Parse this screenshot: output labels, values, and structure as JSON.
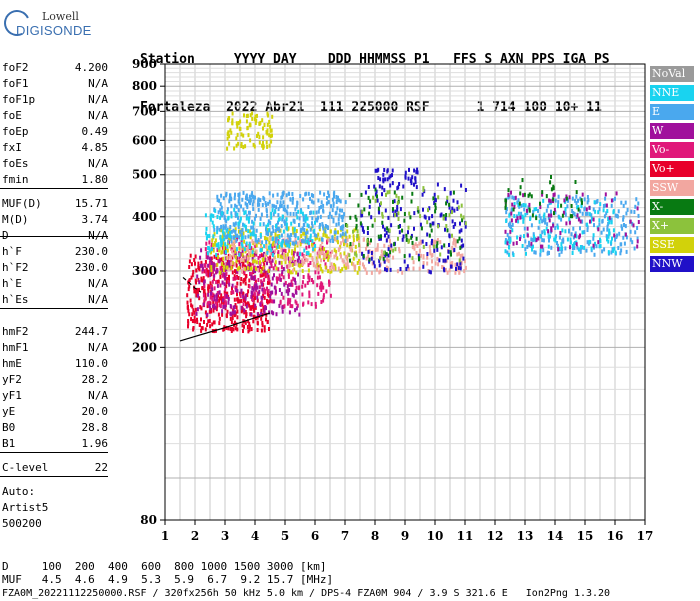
{
  "logo": {
    "line1": "Lowell",
    "line2": "DIGISONDE"
  },
  "header": {
    "line1": "Station     YYYY DAY    DDD HHMMSS P1   FFS S AXN PPS IGA PS",
    "line2": "Fortaleza  2022 Abr21  111 225000 RSF      1 714 100 10+ 11"
  },
  "params": {
    "group1": [
      {
        "name": "foF2",
        "value": "4.200"
      },
      {
        "name": "foF1",
        "value": "N/A"
      },
      {
        "name": "foF1p",
        "value": "N/A"
      },
      {
        "name": "foE",
        "value": "N/A"
      },
      {
        "name": "foEp",
        "value": "0.49"
      },
      {
        "name": "fxI",
        "value": "4.85"
      },
      {
        "name": "foEs",
        "value": "N/A"
      },
      {
        "name": "fmin",
        "value": "1.80"
      }
    ],
    "group2": [
      {
        "name": "MUF(D)",
        "value": "15.71"
      },
      {
        "name": "M(D)",
        "value": "3.74"
      },
      {
        "name": "D",
        "value": "N/A"
      }
    ],
    "group3": [
      {
        "name": "h`F",
        "value": "230.0"
      },
      {
        "name": "h`F2",
        "value": "230.0"
      },
      {
        "name": "h`E",
        "value": "N/A"
      },
      {
        "name": "h`Es",
        "value": "N/A"
      }
    ],
    "group4": [
      {
        "name": "hmF2",
        "value": "244.7"
      },
      {
        "name": "hmF1",
        "value": "N/A"
      },
      {
        "name": "hmE",
        "value": "110.0"
      },
      {
        "name": "yF2",
        "value": "28.2"
      },
      {
        "name": "yF1",
        "value": "N/A"
      },
      {
        "name": "yE",
        "value": "20.0"
      },
      {
        "name": "B0",
        "value": "28.8"
      },
      {
        "name": "B1",
        "value": "1.96"
      }
    ],
    "group5": [
      {
        "name": "C-level",
        "value": "22"
      }
    ]
  },
  "auto": {
    "line1": "Auto:",
    "line2": "Artist5",
    "line3": "500200"
  },
  "footer": {
    "d_line": "D     100  200  400  600  800 1000 1500 3000 [km]",
    "muf_line": "MUF   4.5  4.6  4.9  5.3  5.9  6.7  9.2 15.7 [MHz]",
    "info_line": "FZA0M_20221112250000.RSF / 320fx256h 50 kHz 5.0 km / DPS-4 FZA0M 904 / 3.9 S 321.6 E   Ion2Png 1.3.20"
  },
  "legend": [
    {
      "label": "NoVal",
      "color": "#9a9a9a"
    },
    {
      "label": "NNE",
      "color": "#19d3f0"
    },
    {
      "label": "E",
      "color": "#4aa8ee"
    },
    {
      "label": "W",
      "color": "#a0109c"
    },
    {
      "label": "Vo-",
      "color": "#e0187a"
    },
    {
      "label": "Vo+",
      "color": "#e8002a"
    },
    {
      "label": "SSW",
      "color": "#f2a7a0"
    },
    {
      "label": "X-",
      "color": "#087a12"
    },
    {
      "label": "X+",
      "color": "#8cc23c"
    },
    {
      "label": "SSE",
      "color": "#d2d20a"
    },
    {
      "label": "NNW",
      "color": "#2010c8"
    }
  ],
  "chart_data": {
    "type": "scatter",
    "xlabel": "",
    "ylabel": "",
    "xlim": [
      1,
      17
    ],
    "ylim": [
      80,
      900
    ],
    "x_ticks": [
      "1",
      "2",
      "3",
      "4",
      "5",
      "6",
      "7",
      "8",
      "9",
      "10",
      "11",
      "12",
      "13",
      "14",
      "15",
      "16",
      "17"
    ],
    "y_ticks": [
      "80",
      "200",
      "300",
      "400",
      "500",
      "600",
      "700",
      "800",
      "900"
    ],
    "y_scale": "log",
    "grid": true,
    "trace_upper": {
      "x": [
        1.6,
        1.8,
        2.0,
        2.2
      ],
      "y": [
        290,
        282,
        274,
        268
      ]
    },
    "trace_lower": {
      "x": [
        1.5,
        2.0,
        2.5,
        3.0,
        3.5,
        4.0,
        4.5
      ],
      "y": [
        207,
        212,
        217,
        222,
        228,
        234,
        240
      ]
    },
    "clusters": [
      {
        "color": "#e8002a",
        "x": [
          1.7,
          4.5
        ],
        "y": [
          220,
          330
        ],
        "n": 420
      },
      {
        "color": "#e0187a",
        "x": [
          2.2,
          6.5
        ],
        "y": [
          250,
          360
        ],
        "n": 300
      },
      {
        "color": "#a0109c",
        "x": [
          2.0,
          5.5
        ],
        "y": [
          240,
          340
        ],
        "n": 200
      },
      {
        "color": "#d2d20a",
        "x": [
          2.5,
          7.5
        ],
        "y": [
          300,
          380
        ],
        "n": 280
      },
      {
        "color": "#f2a7a0",
        "x": [
          3.0,
          11.0
        ],
        "y": [
          300,
          360
        ],
        "n": 260
      },
      {
        "color": "#4aa8ee",
        "x": [
          2.6,
          7.0
        ],
        "y": [
          350,
          460
        ],
        "n": 380
      },
      {
        "color": "#19d3f0",
        "x": [
          2.3,
          6.0
        ],
        "y": [
          330,
          420
        ],
        "n": 140
      },
      {
        "color": "#2010c8",
        "x": [
          7.5,
          11.0
        ],
        "y": [
          300,
          480
        ],
        "n": 160
      },
      {
        "color": "#087a12",
        "x": [
          7.0,
          11.0
        ],
        "y": [
          320,
          470
        ],
        "n": 80
      },
      {
        "color": "#8cc23c",
        "x": [
          7.0,
          11.0
        ],
        "y": [
          320,
          480
        ],
        "n": 60
      },
      {
        "color": "#d2d20a",
        "x": [
          3.0,
          4.6
        ],
        "y": [
          580,
          700
        ],
        "n": 90
      },
      {
        "color": "#4aa8ee",
        "x": [
          12.3,
          16.8
        ],
        "y": [
          330,
          450
        ],
        "n": 240
      },
      {
        "color": "#19d3f0",
        "x": [
          12.3,
          16.0
        ],
        "y": [
          330,
          440
        ],
        "n": 120
      },
      {
        "color": "#a0109c",
        "x": [
          12.3,
          16.8
        ],
        "y": [
          340,
          460
        ],
        "n": 80
      },
      {
        "color": "#087a12",
        "x": [
          12.3,
          15.0
        ],
        "y": [
          400,
          500
        ],
        "n": 40
      },
      {
        "color": "#2010c8",
        "x": [
          7.8,
          9.5
        ],
        "y": [
          470,
          520
        ],
        "n": 40
      }
    ]
  }
}
